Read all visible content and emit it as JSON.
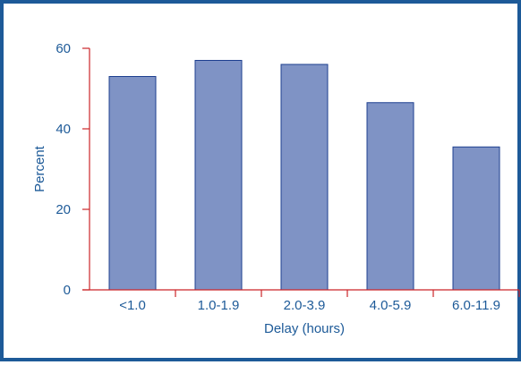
{
  "colors": {
    "frame": "#1d5a98",
    "axis": "#cc2529",
    "bar_fill": "#7f93c5",
    "bar_stroke": "#1d3f8f",
    "text": "#1d5a98"
  },
  "chart_data": {
    "type": "bar",
    "title": "",
    "xlabel": "Delay (hours)",
    "ylabel": "Percent",
    "categories": [
      "<1.0",
      "1.0-1.9",
      "2.0-3.9",
      "4.0-5.9",
      "6.0-11.9"
    ],
    "values": [
      53,
      57,
      56,
      46.5,
      35.5
    ],
    "ylim": [
      0,
      60
    ],
    "yticks": [
      0,
      20,
      40,
      60
    ],
    "grid": false,
    "legend": "none"
  }
}
